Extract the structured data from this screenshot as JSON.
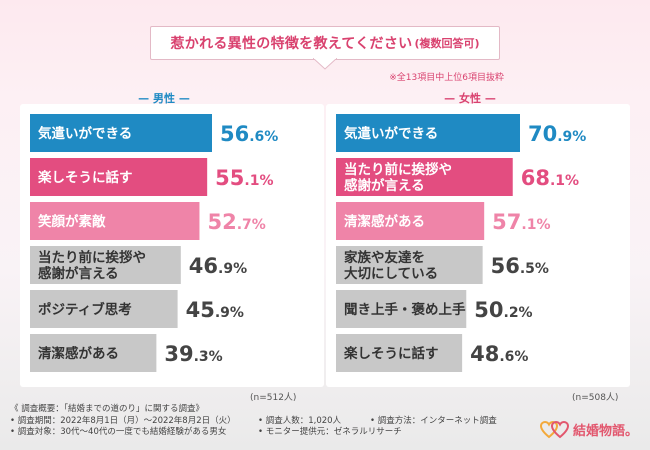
{
  "title": {
    "main": "惹かれる異性の特徴を教えてください",
    "sub": "(複数回答可)"
  },
  "note": "※全13項目中上位6項目抜粋",
  "chart_data": [
    {
      "type": "bar",
      "title": "男性",
      "orientation": "horizontal",
      "categories": [
        "気遣いができる",
        "楽しそうに話す",
        "笑顔が素敵",
        "当たり前に挨拶や感謝が言える",
        "ポジティブ思考",
        "清潔感がある"
      ],
      "label_lines": [
        [
          "気遣いができる"
        ],
        [
          "楽しそうに話す"
        ],
        [
          "笑顔が素敵"
        ],
        [
          "当たり前に挨拶や",
          "感謝が言える"
        ],
        [
          "ポジティブ思考"
        ],
        [
          "清潔感がある"
        ]
      ],
      "values": [
        56.6,
        55.1,
        52.7,
        46.9,
        45.9,
        39.3
      ],
      "unit": "%",
      "colors": [
        "#1f8ac3",
        "#e34d80",
        "#ef84a8",
        "#c8c8c8",
        "#c8c8c8",
        "#c8c8c8"
      ],
      "value_colors": [
        "#1f8ac3",
        "#e34d80",
        "#ef84a8",
        "#444444",
        "#444444",
        "#444444"
      ],
      "n": "(n=512人)"
    },
    {
      "type": "bar",
      "title": "女性",
      "orientation": "horizontal",
      "categories": [
        "気遣いができる",
        "当たり前に挨拶や感謝が言える",
        "清潔感がある",
        "家族や友達を大切にしている",
        "聞き上手・褒め上手",
        "楽しそうに話す"
      ],
      "label_lines": [
        [
          "気遣いができる"
        ],
        [
          "当たり前に挨拶や",
          "感謝が言える"
        ],
        [
          "清潔感がある"
        ],
        [
          "家族や友達を",
          "大切にしている"
        ],
        [
          "聞き上手・褒め上手"
        ],
        [
          "楽しそうに話す"
        ]
      ],
      "values": [
        70.9,
        68.1,
        57.1,
        56.5,
        50.2,
        48.6
      ],
      "unit": "%",
      "colors": [
        "#1f8ac3",
        "#e34d80",
        "#ef84a8",
        "#c8c8c8",
        "#c8c8c8",
        "#c8c8c8"
      ],
      "value_colors": [
        "#1f8ac3",
        "#e34d80",
        "#ef84a8",
        "#444444",
        "#444444",
        "#444444"
      ],
      "n": "(n=508人)"
    }
  ],
  "headers": {
    "male": "男性",
    "female": "女性"
  },
  "footer": {
    "overview": "《 調査概要：「結婚までの道のり」に関する調査》",
    "period": "• 調査期間：2022年8月1日（月）〜2022年8月2日（火）",
    "people": "• 調査人数：1,020人",
    "method": "• 調査方法：インターネット調査",
    "target": "• 調査対象：30代〜40代の一度でも結婚経験がある男女",
    "monitor": "• モニター提供元：ゼネラルリサーチ"
  },
  "logo": {
    "text": "結婚物語。",
    "colors": [
      "#f3a93b",
      "#e2576e"
    ]
  }
}
